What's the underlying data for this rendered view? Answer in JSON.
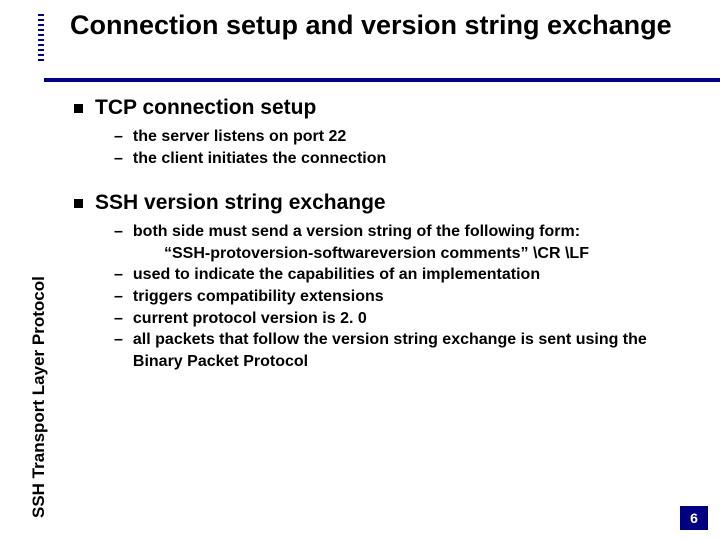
{
  "colors": {
    "accent": "#000080",
    "text": "#000000",
    "background": "#ffffff",
    "page_num_bg": "#000080",
    "page_num_fg": "#ffffff"
  },
  "typography": {
    "title_fontsize": 27,
    "lvl1_fontsize": 21,
    "lvl2_fontsize": 16,
    "vertical_label_fontsize": 17,
    "font_family": "Arial"
  },
  "layout": {
    "slide_width": 720,
    "slide_height": 540,
    "title_rule_height": 4,
    "tick_count": 10
  },
  "vertical_label": "SSH Transport Layer Protocol",
  "title": "Connection setup and version string exchange",
  "sections": [
    {
      "heading": "TCP connection setup",
      "items": [
        {
          "text": "the server listens on port 22"
        },
        {
          "text": "the client initiates the connection"
        }
      ]
    },
    {
      "heading": "SSH version string exchange",
      "items": [
        {
          "text": "both side must send a version string of the following form:",
          "sub": "“SSH-protoversion-softwareversion comments” \\CR \\LF"
        },
        {
          "text": "used to indicate the capabilities of an implementation"
        },
        {
          "text": "triggers compatibility extensions"
        },
        {
          "text": "current protocol version is 2. 0"
        },
        {
          "text": "all packets that follow the version string exchange is sent using the Binary Packet Protocol"
        }
      ]
    }
  ],
  "page_number": "6"
}
